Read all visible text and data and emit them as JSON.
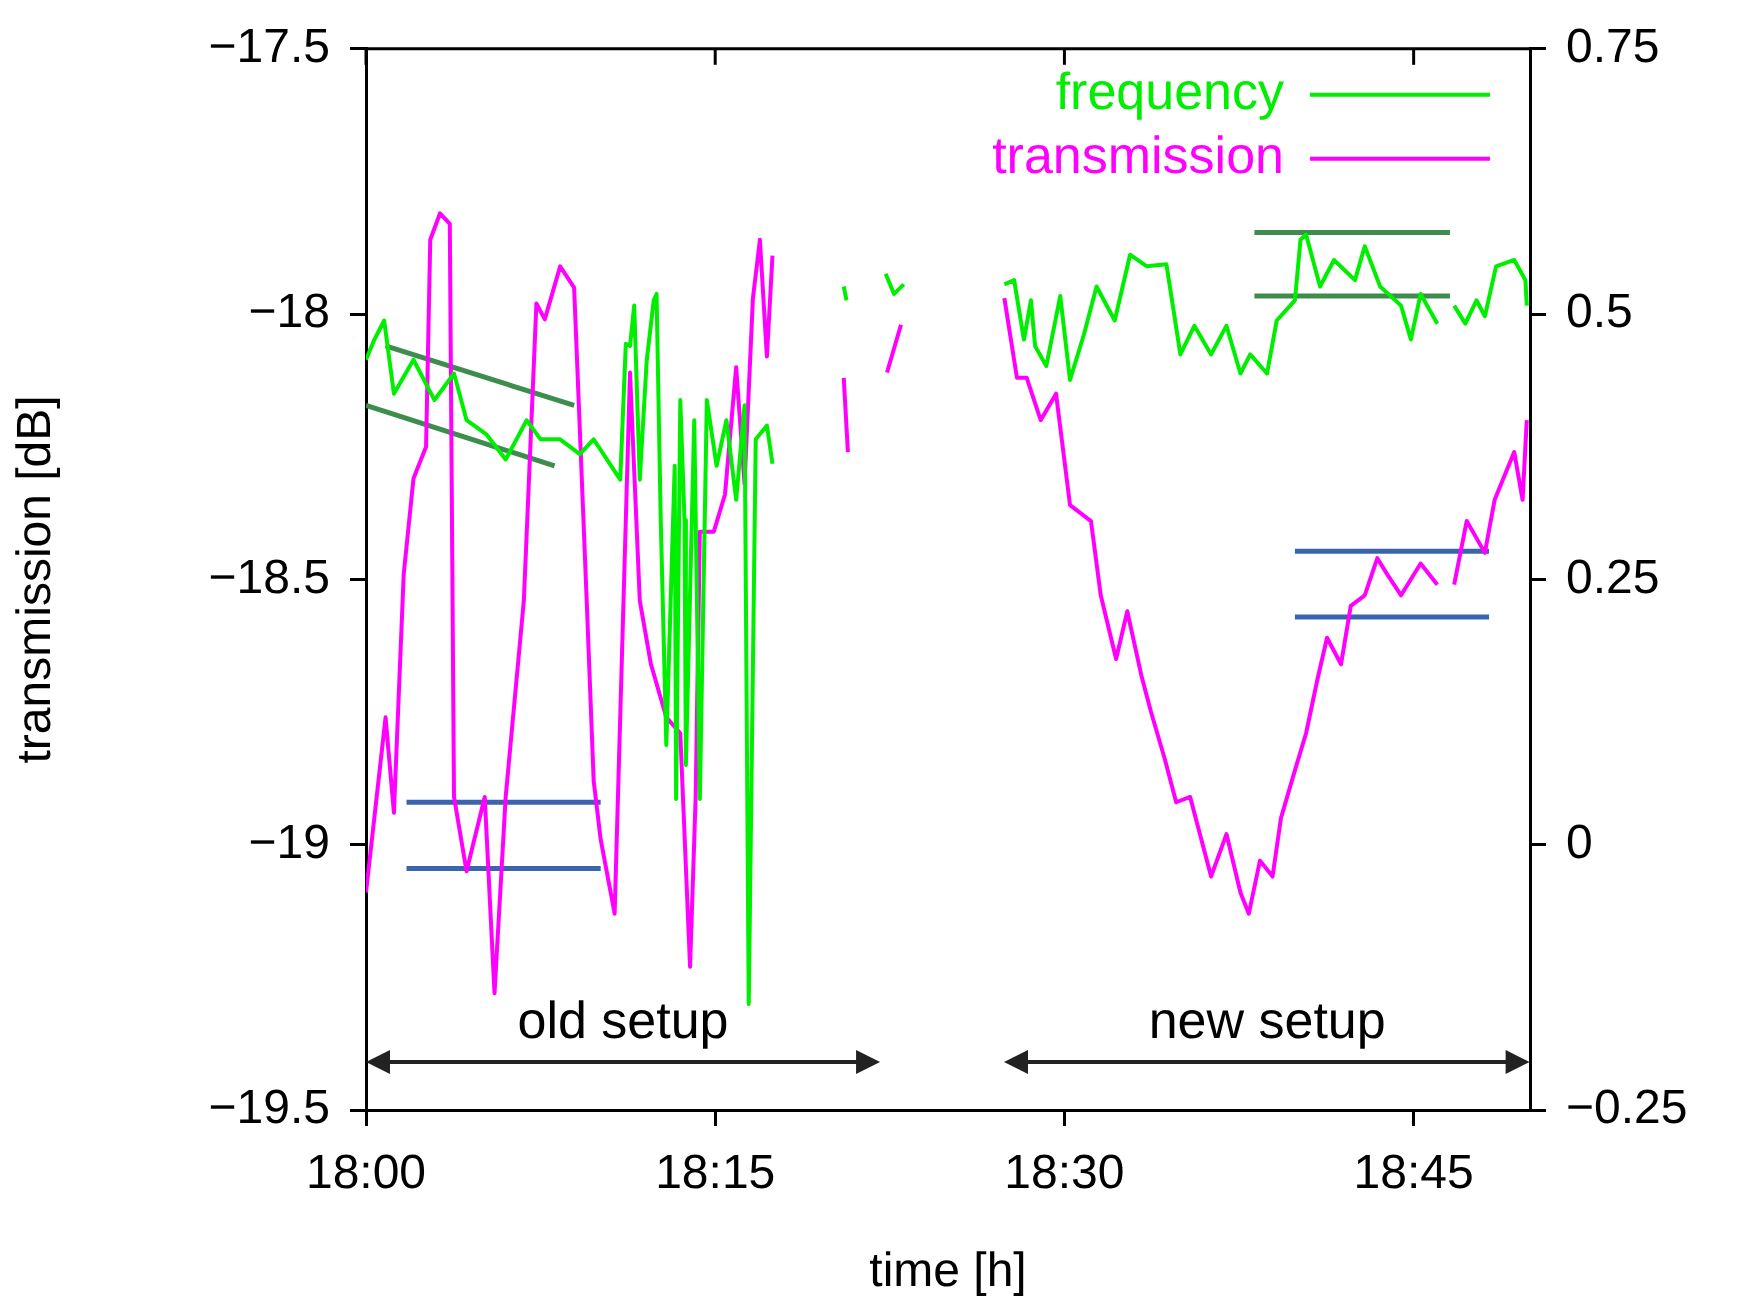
{
  "chart_data": {
    "type": "line",
    "xlabel": "time [h]",
    "ylabel": "transmission [dB]",
    "xlim": [
      18.0,
      18.8333
    ],
    "xticks": [
      {
        "value": 18.0,
        "label": "18:00"
      },
      {
        "value": 18.25,
        "label": "18:15"
      },
      {
        "value": 18.5,
        "label": "18:30"
      },
      {
        "value": 18.75,
        "label": "18:45"
      }
    ],
    "ylim": [
      -19.5,
      -17.5
    ],
    "yticks": [
      {
        "value": -19.5,
        "label": "−19.5"
      },
      {
        "value": -19,
        "label": "−19"
      },
      {
        "value": -18.5,
        "label": "−18.5"
      },
      {
        "value": -18,
        "label": "−18"
      },
      {
        "value": -17.5,
        "label": "−17.5"
      }
    ],
    "y2lim": [
      -0.25,
      0.75
    ],
    "y2ticks": [
      {
        "value": -0.25,
        "label": "−0.25"
      },
      0,
      0.25,
      0.5,
      0.75
    ],
    "grid": false,
    "legend": "top right",
    "marker": "none",
    "line_style": "solid",
    "annotations": [
      "old setup",
      "new setup"
    ],
    "series": [
      {
        "name": "frequency",
        "color": "#00ee00",
        "axis": "y2",
        "x": [
          18.0,
          18.006,
          18.013,
          18.02,
          18.034,
          18.049,
          18.063,
          18.072,
          18.086,
          18.1,
          18.115,
          18.125,
          18.139,
          18.153,
          18.163,
          18.182,
          18.186,
          18.189,
          18.192,
          18.196,
          18.201,
          18.206,
          18.208,
          18.211,
          18.215,
          18.221,
          18.222,
          18.225,
          18.228,
          18.229,
          18.235,
          18.239,
          18.244,
          18.251,
          18.258,
          18.265,
          18.271,
          18.274,
          18.279,
          18.287,
          18.291,
          18.32,
          18.342,
          18.344,
          18.36,
          18.372,
          18.378,
          18.385,
          18.42,
          18.457,
          18.464,
          18.471,
          18.476,
          18.479,
          18.487,
          18.497,
          18.504,
          18.514,
          18.523,
          18.536,
          18.547,
          18.559,
          18.573,
          18.583,
          18.593,
          18.605,
          18.616,
          18.626,
          18.633,
          18.645,
          18.652,
          18.665,
          18.669,
          18.673,
          18.683,
          18.693,
          18.708,
          18.715,
          18.726,
          18.741,
          18.748,
          18.755,
          18.767,
          18.772,
          18.779,
          18.787,
          18.795,
          18.801,
          18.809,
          18.822,
          18.83,
          18.831
        ],
        "values": [
          0.457,
          0.476,
          0.494,
          0.425,
          0.457,
          0.419,
          0.444,
          0.4,
          0.387,
          0.363,
          0.4,
          0.382,
          0.382,
          0.368,
          0.382,
          0.344,
          0.472,
          0.47,
          0.508,
          0.344,
          0.457,
          0.513,
          0.519,
          0.306,
          0.094,
          0.357,
          0.043,
          0.419,
          0.306,
          0.075,
          0.4,
          0.043,
          0.419,
          0.357,
          0.4,
          0.325,
          0.414,
          -0.15,
          0.382,
          0.395,
          0.359,
          null,
          0.526,
          0.513,
          null,
          0.538,
          0.519,
          0.528,
          null,
          0.528,
          0.532,
          0.476,
          0.513,
          0.47,
          0.451,
          0.517,
          0.438,
          0.481,
          0.526,
          0.494,
          0.556,
          0.545,
          0.547,
          0.462,
          0.489,
          0.462,
          0.489,
          0.444,
          0.462,
          0.444,
          0.494,
          0.513,
          0.57,
          0.575,
          0.526,
          0.551,
          0.532,
          0.564,
          0.526,
          0.508,
          0.476,
          0.519,
          0.491,
          null,
          0.508,
          0.491,
          0.513,
          0.498,
          0.545,
          0.551,
          0.532,
          0.508
        ]
      },
      {
        "name": "transmission",
        "color": "#ff00ff",
        "axis": "y",
        "x": [
          18.0,
          18.014,
          18.02,
          18.027,
          18.034,
          18.043,
          18.046,
          18.053,
          18.06,
          18.063,
          18.072,
          18.085,
          18.092,
          18.1,
          18.113,
          18.122,
          18.128,
          18.139,
          18.149,
          18.158,
          18.163,
          18.168,
          18.178,
          18.189,
          18.196,
          18.204,
          18.215,
          18.225,
          18.232,
          18.236,
          18.239,
          18.249,
          18.257,
          18.265,
          18.271,
          18.277,
          18.282,
          18.287,
          18.291,
          18.32,
          18.342,
          18.345,
          18.36,
          18.373,
          18.383,
          18.42,
          18.457,
          18.466,
          18.473,
          18.483,
          18.494,
          18.504,
          18.519,
          18.526,
          18.537,
          18.545,
          18.555,
          18.562,
          18.572,
          18.58,
          18.59,
          18.605,
          18.616,
          18.626,
          18.632,
          18.64,
          18.649,
          18.655,
          18.665,
          18.673,
          18.681,
          18.688,
          18.698,
          18.705,
          18.715,
          18.724,
          18.731,
          18.741,
          18.755,
          18.767,
          18.772,
          18.779,
          18.788,
          18.801,
          18.808,
          18.822,
          18.828,
          18.831
        ],
        "values": [
          -19.09,
          -18.76,
          -18.94,
          -18.49,
          -18.31,
          -18.25,
          -17.86,
          -17.81,
          -17.83,
          -18.91,
          -19.05,
          -18.91,
          -19.28,
          -18.91,
          -18.54,
          -17.98,
          -18.01,
          -17.91,
          -17.95,
          -18.54,
          -18.88,
          -18.99,
          -19.13,
          -18.11,
          -18.54,
          -18.66,
          -18.76,
          -18.79,
          -19.23,
          -18.91,
          -18.41,
          -18.41,
          -18.34,
          -18.1,
          -18.32,
          -17.97,
          -17.86,
          -18.08,
          -17.89,
          null,
          -18.12,
          -18.26,
          null,
          -18.11,
          -18.02,
          null,
          -17.97,
          -18.12,
          -18.12,
          -18.2,
          -18.15,
          -18.36,
          -18.39,
          -18.53,
          -18.65,
          -18.56,
          -18.68,
          -18.75,
          -18.84,
          -18.92,
          -18.91,
          -19.06,
          -18.98,
          -19.09,
          -19.13,
          -19.03,
          -19.06,
          -18.95,
          -18.86,
          -18.79,
          -18.69,
          -18.61,
          -18.66,
          -18.55,
          -18.53,
          -18.46,
          -18.49,
          -18.53,
          -18.47,
          -18.51,
          null,
          -18.51,
          -18.39,
          -18.45,
          -18.35,
          -18.26,
          -18.35,
          -18.2
        ]
      },
      {
        "type": "line",
        "color": "#3f8c4f",
        "axis": "y2",
        "x": [
          18.014,
          18.149
        ],
        "values": [
          0.47,
          0.414
        ]
      },
      {
        "type": "line",
        "color": "#3f8c4f",
        "axis": "y2",
        "x": [
          18.0,
          18.135
        ],
        "values": [
          0.414,
          0.357
        ]
      },
      {
        "type": "line",
        "color": "#3f8c4f",
        "axis": "y2",
        "x": [
          18.636,
          18.776
        ],
        "values": [
          0.577,
          0.577
        ]
      },
      {
        "type": "line",
        "color": "#3f8c4f",
        "axis": "y2",
        "x": [
          18.636,
          18.776
        ],
        "values": [
          0.517,
          0.517
        ]
      },
      {
        "type": "line",
        "color": "#3a64ad",
        "axis": "y",
        "x": [
          18.029,
          18.168
        ],
        "values": [
          -18.92,
          -18.92
        ]
      },
      {
        "type": "line",
        "color": "#3a64ad",
        "axis": "y",
        "x": [
          18.029,
          18.168
        ],
        "values": [
          -19.045,
          -19.045
        ]
      },
      {
        "type": "line",
        "color": "#3a64ad",
        "axis": "y",
        "x": [
          18.665,
          18.804
        ],
        "values": [
          -18.447,
          -18.447
        ]
      },
      {
        "type": "line",
        "color": "#3a64ad",
        "axis": "y",
        "x": [
          18.665,
          18.804
        ],
        "values": [
          -18.571,
          -18.571
        ]
      }
    ]
  }
}
